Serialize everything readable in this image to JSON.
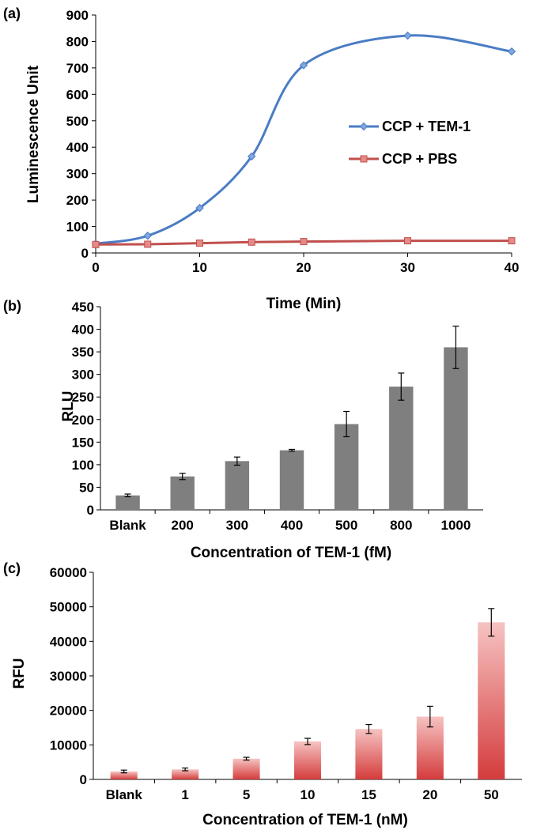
{
  "chart_data": [
    {
      "type": "line",
      "panel": "(a)",
      "xlabel": "Time (Min)",
      "ylabel": "Luminescence Unit",
      "xlim": [
        0,
        40
      ],
      "ylim": [
        0,
        900
      ],
      "xticks": [
        0,
        10,
        20,
        30,
        40
      ],
      "yticks": [
        0,
        100,
        200,
        300,
        400,
        500,
        600,
        700,
        800,
        900
      ],
      "grid": false,
      "legend_position": "right",
      "series": [
        {
          "name": "CCP + TEM-1",
          "color": "#4a7cc4",
          "marker": "diamond",
          "smooth": true,
          "x": [
            0,
            5,
            10,
            15,
            20,
            30,
            40
          ],
          "y": [
            35,
            65,
            170,
            365,
            710,
            822,
            762
          ]
        },
        {
          "name": "CCP + PBS",
          "color": "#c0504d",
          "marker": "square",
          "smooth": false,
          "x": [
            0,
            5,
            10,
            15,
            20,
            30,
            40
          ],
          "y": [
            32,
            33,
            37,
            41,
            43,
            46,
            46
          ]
        }
      ]
    },
    {
      "type": "bar",
      "panel": "(b)",
      "xlabel": "Concentration of TEM-1 (fM)",
      "ylabel": "RLU",
      "ylim": [
        0,
        450
      ],
      "yticks": [
        0,
        50,
        100,
        150,
        200,
        250,
        300,
        350,
        400,
        450
      ],
      "categories": [
        "Blank",
        "200",
        "300",
        "400",
        "500",
        "800",
        "1000"
      ],
      "values": [
        32,
        74,
        108,
        132,
        190,
        273,
        360
      ],
      "errors": [
        3,
        7,
        9,
        2,
        28,
        30,
        47
      ],
      "color": "#7f7f7f"
    },
    {
      "type": "bar",
      "panel": "(c)",
      "xlabel": "Concentration of TEM-1 (nM)",
      "ylabel": "RFU",
      "ylim": [
        0,
        60000
      ],
      "yticks": [
        0,
        10000,
        20000,
        30000,
        40000,
        50000,
        60000
      ],
      "categories": [
        "Blank",
        "1",
        "5",
        "10",
        "15",
        "20",
        "50"
      ],
      "values": [
        2300,
        2900,
        6000,
        11000,
        14600,
        18200,
        45500
      ],
      "errors": [
        400,
        400,
        400,
        900,
        1300,
        3000,
        4000
      ],
      "color_top": "#f6c3c2",
      "color_bottom": "#d43c3c"
    }
  ]
}
